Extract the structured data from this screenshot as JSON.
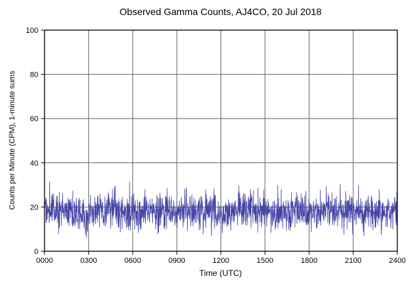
{
  "chart_data": {
    "type": "line",
    "title": "Observed Gamma Counts, AJ4CO, 20 Jul 2018",
    "xlabel": "Time (UTC)",
    "ylabel": "Counts per Minute (CPM), 1-minute sums",
    "xlim": [
      0,
      1440
    ],
    "ylim": [
      0,
      100
    ],
    "x_tick_labels": [
      "0000",
      "0300",
      "0600",
      "0900",
      "1200",
      "1500",
      "1800",
      "2100",
      "2400"
    ],
    "y_ticks": [
      0,
      20,
      40,
      60,
      80,
      100
    ],
    "y_tick_labels": [
      "0",
      "20",
      "40",
      "60",
      "80",
      "100"
    ],
    "grid": true,
    "legend_position": "none",
    "line_color": "#4444a6",
    "grid_color": "#666666",
    "frame_color": "#000000",
    "text_color": "#000000",
    "background_color": "#ffffff",
    "series": [
      {
        "name": "gamma_counts_cpm_1min",
        "description": "Noisy 1-minute gamma count sums, flat baseline across 24 h",
        "generator": {
          "kind": "gaussian-noise",
          "n": 1440,
          "mean": 17.8,
          "sd": 4.2,
          "clamp_min": 5,
          "clamp_max": 36,
          "seed": 20180720
        }
      }
    ]
  }
}
